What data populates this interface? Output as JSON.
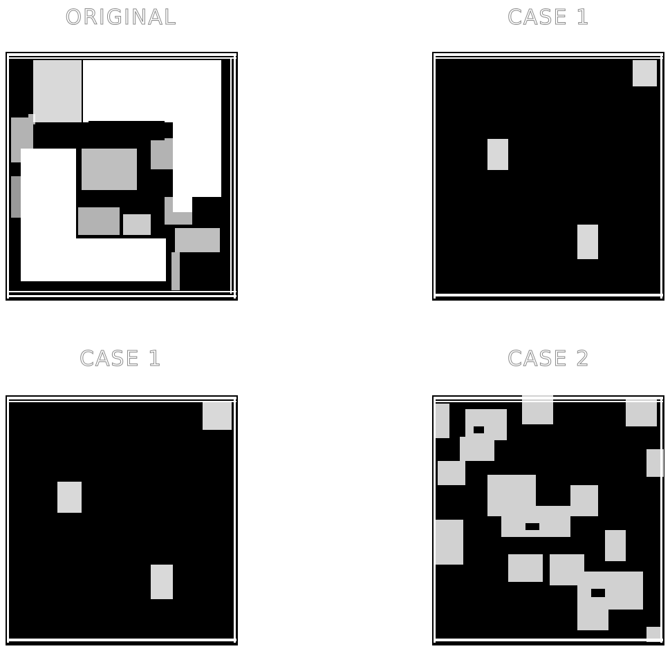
{
  "figure": {
    "panels": [
      {
        "id": "original",
        "title": "ORIGINAL"
      },
      {
        "id": "case1_top",
        "title": "CASE 1"
      },
      {
        "id": "case1_bottom",
        "title": "CASE 1"
      },
      {
        "id": "case2",
        "title": "CASE 2"
      }
    ]
  },
  "colors": {
    "foreground": "#ffffff",
    "background": "#000000",
    "title_outline": "#8a8a8a"
  }
}
